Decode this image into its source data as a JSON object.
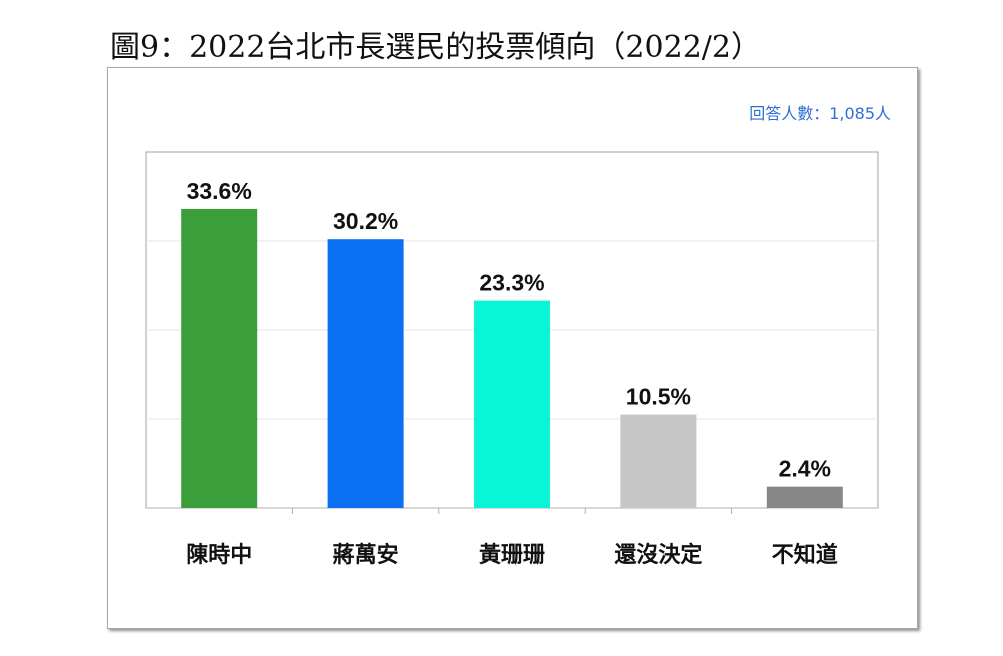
{
  "header": {
    "title": "圖9：2022台北市長選民的投票傾向（2022/2）"
  },
  "chart_note": "回答人數：1,085人",
  "chart_data": {
    "type": "bar",
    "title": "",
    "xlabel": "",
    "ylabel": "",
    "ylim": [
      0,
      40
    ],
    "grid": true,
    "legend": "none",
    "categories": [
      "陳時中",
      "蔣萬安",
      "黃珊珊",
      "還沒決定",
      "不知道"
    ],
    "values": [
      33.6,
      30.2,
      23.3,
      10.5,
      2.4
    ],
    "data_labels": [
      "33.6%",
      "30.2%",
      "23.3%",
      "10.5%",
      "2.4%"
    ],
    "colors": [
      "#3a9e3a",
      "#0a6ff0",
      "#08f5d8",
      "#c6c6c6",
      "#878787"
    ]
  }
}
